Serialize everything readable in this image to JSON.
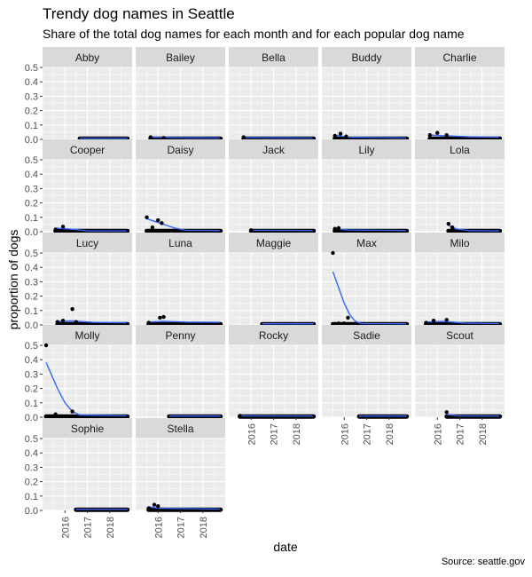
{
  "title": "Trendy dog names in Seattle",
  "subtitle": "Share of the total dog names for each month and for each popular dog name",
  "caption": "Source: seattle.gov",
  "chart_data": {
    "type": "faceted-scatter-with-smooth",
    "xlabel": "date",
    "ylabel": "proportion of dogs",
    "x_ticks": [
      "2016",
      "2017",
      "2018"
    ],
    "y_ticks": [
      "0.0",
      "0.1",
      "0.2",
      "0.3",
      "0.4",
      "0.5"
    ],
    "xlim": [
      "2015-01-01",
      "2018-12-31"
    ],
    "ylim": [
      0,
      0.5
    ],
    "facet_cols": 5,
    "colors": {
      "panel_bg": "#EBEBEB",
      "grid": "#FFFFFF",
      "strip_bg": "#D9D9D9",
      "points": "#000000",
      "smooth": "#3366FF"
    },
    "facets": [
      {
        "name": "Abby",
        "start": "2016-09-01",
        "early": [],
        "smooth": []
      },
      {
        "name": "Bailey",
        "start": "2015-09-01",
        "early": [
          [
            "2015-09-01",
            0.015
          ],
          [
            "2016-04-01",
            0.01
          ]
        ],
        "smooth": [
          [
            "2015-09-01",
            0.015
          ],
          [
            "2016-09-01",
            0.012
          ],
          [
            "2018-10-01",
            0.01
          ]
        ]
      },
      {
        "name": "Bella",
        "start": "2015-09-01",
        "early": [
          [
            "2015-09-01",
            0.015
          ]
        ],
        "smooth": [
          [
            "2015-09-01",
            0.012
          ],
          [
            "2018-10-01",
            0.01
          ]
        ]
      },
      {
        "name": "Buddy",
        "start": "2015-08-01",
        "early": [
          [
            "2015-08-01",
            0.025
          ],
          [
            "2015-11-01",
            0.04
          ],
          [
            "2016-02-01",
            0.02
          ]
        ],
        "smooth": [
          [
            "2015-08-01",
            0.03
          ],
          [
            "2016-03-01",
            0.015
          ],
          [
            "2018-10-01",
            0.01
          ]
        ]
      },
      {
        "name": "Charlie",
        "start": "2015-09-01",
        "early": [
          [
            "2015-09-01",
            0.03
          ],
          [
            "2016-01-01",
            0.045
          ],
          [
            "2016-06-01",
            0.03
          ]
        ],
        "smooth": [
          [
            "2015-09-01",
            0.03
          ],
          [
            "2016-05-01",
            0.025
          ],
          [
            "2017-06-01",
            0.018
          ],
          [
            "2018-10-01",
            0.015
          ]
        ]
      },
      {
        "name": "Cooper",
        "start": "2015-08-01",
        "early": [
          [
            "2015-08-01",
            0.015
          ],
          [
            "2015-12-01",
            0.035
          ]
        ],
        "smooth": [
          [
            "2015-08-01",
            0.025
          ],
          [
            "2016-04-01",
            0.018
          ],
          [
            "2017-02-01",
            0.005
          ],
          [
            "2018-10-01",
            0.005
          ]
        ]
      },
      {
        "name": "Daisy",
        "start": "2015-07-01",
        "early": [
          [
            "2015-07-01",
            0.1
          ],
          [
            "2016-01-01",
            0.08
          ],
          [
            "2016-03-01",
            0.06
          ],
          [
            "2015-10-01",
            0.03
          ]
        ],
        "smooth": [
          [
            "2015-07-01",
            0.09
          ],
          [
            "2016-03-01",
            0.055
          ],
          [
            "2016-10-01",
            0.025
          ],
          [
            "2017-04-01",
            0.01
          ],
          [
            "2018-10-01",
            0.008
          ]
        ]
      },
      {
        "name": "Jack",
        "start": "2016-01-01",
        "early": [
          [
            "2016-01-01",
            0.01
          ]
        ],
        "smooth": [
          [
            "2016-01-01",
            0.01
          ],
          [
            "2018-10-01",
            0.008
          ]
        ]
      },
      {
        "name": "Lily",
        "start": "2015-08-01",
        "early": [
          [
            "2015-08-01",
            0.02
          ],
          [
            "2015-10-01",
            0.025
          ]
        ],
        "smooth": [
          [
            "2015-08-01",
            0.022
          ],
          [
            "2016-03-01",
            0.012
          ],
          [
            "2018-10-01",
            0.008
          ]
        ]
      },
      {
        "name": "Lola",
        "start": "2016-07-01",
        "early": [
          [
            "2016-07-01",
            0.055
          ],
          [
            "2016-09-01",
            0.03
          ]
        ],
        "smooth": [
          [
            "2016-07-01",
            0.045
          ],
          [
            "2016-11-01",
            0.02
          ],
          [
            "2017-06-01",
            0.008
          ],
          [
            "2018-10-01",
            0.005
          ]
        ]
      },
      {
        "name": "Lucy",
        "start": "2015-09-01",
        "early": [
          [
            "2015-09-01",
            0.02
          ],
          [
            "2015-12-01",
            0.03
          ],
          [
            "2016-05-01",
            0.11
          ],
          [
            "2016-07-01",
            0.02
          ]
        ],
        "smooth": [
          [
            "2015-09-01",
            0.025
          ],
          [
            "2016-05-01",
            0.028
          ],
          [
            "2017-04-01",
            0.018
          ],
          [
            "2018-10-01",
            0.015
          ]
        ]
      },
      {
        "name": "Luna",
        "start": "2015-08-01",
        "early": [
          [
            "2015-08-01",
            0.015
          ],
          [
            "2016-02-01",
            0.05
          ],
          [
            "2016-04-01",
            0.055
          ]
        ],
        "smooth": [
          [
            "2015-08-01",
            0.02
          ],
          [
            "2016-04-01",
            0.025
          ],
          [
            "2017-04-01",
            0.02
          ],
          [
            "2018-10-01",
            0.018
          ]
        ]
      },
      {
        "name": "Maggie",
        "start": "2016-07-01",
        "early": [],
        "smooth": []
      },
      {
        "name": "Max",
        "start": "2015-07-01",
        "early": [
          [
            "2015-07-01",
            0.5
          ],
          [
            "2015-10-01",
            0.01
          ],
          [
            "2016-01-01",
            0.01
          ],
          [
            "2016-03-01",
            0.05
          ]
        ],
        "smooth": [
          [
            "2015-07-01",
            0.37
          ],
          [
            "2015-10-01",
            0.26
          ],
          [
            "2016-01-01",
            0.15
          ],
          [
            "2016-04-01",
            0.07
          ],
          [
            "2016-07-01",
            0.025
          ],
          [
            "2016-10-01",
            0.01
          ],
          [
            "2018-10-01",
            0.008
          ]
        ]
      },
      {
        "name": "Milo",
        "start": "2015-07-01",
        "early": [
          [
            "2015-07-01",
            0.015
          ],
          [
            "2015-11-01",
            0.03
          ],
          [
            "2016-06-01",
            0.035
          ]
        ],
        "smooth": [
          [
            "2015-07-01",
            0.02
          ],
          [
            "2016-04-01",
            0.025
          ],
          [
            "2017-04-01",
            0.012
          ],
          [
            "2018-10-01",
            0.01
          ]
        ]
      },
      {
        "name": "Molly",
        "start": "2015-03-01",
        "early": [
          [
            "2015-03-01",
            0.5
          ],
          [
            "2015-08-01",
            0.02
          ],
          [
            "2016-05-01",
            0.04
          ]
        ],
        "smooth": [
          [
            "2015-03-01",
            0.38
          ],
          [
            "2015-06-01",
            0.29
          ],
          [
            "2015-09-01",
            0.2
          ],
          [
            "2016-01-01",
            0.1
          ],
          [
            "2016-05-01",
            0.04
          ],
          [
            "2016-09-01",
            0.015
          ],
          [
            "2018-10-01",
            0.01
          ]
        ]
      },
      {
        "name": "Penny",
        "start": "2016-07-01",
        "early": [],
        "smooth": []
      },
      {
        "name": "Rocky",
        "start": "2015-07-01",
        "early": [
          [
            "2015-07-01",
            0.01
          ]
        ],
        "smooth": [
          [
            "2015-07-01",
            0.01
          ],
          [
            "2018-10-01",
            0.008
          ]
        ]
      },
      {
        "name": "Sadie",
        "start": "2016-09-01",
        "early": [],
        "smooth": []
      },
      {
        "name": "Scout",
        "start": "2016-06-01",
        "early": [
          [
            "2016-06-01",
            0.035
          ]
        ],
        "smooth": [
          [
            "2016-06-01",
            0.02
          ],
          [
            "2016-12-01",
            0.01
          ],
          [
            "2018-10-01",
            0.008
          ]
        ]
      },
      {
        "name": "Sophie",
        "start": "2016-07-01",
        "early": [],
        "smooth": []
      },
      {
        "name": "Stella",
        "start": "2015-08-01",
        "early": [
          [
            "2015-08-01",
            0.015
          ],
          [
            "2015-11-01",
            0.04
          ],
          [
            "2016-01-01",
            0.03
          ]
        ],
        "smooth": [
          [
            "2015-08-01",
            0.025
          ],
          [
            "2016-02-01",
            0.015
          ],
          [
            "2018-10-01",
            0.01
          ]
        ]
      }
    ]
  }
}
